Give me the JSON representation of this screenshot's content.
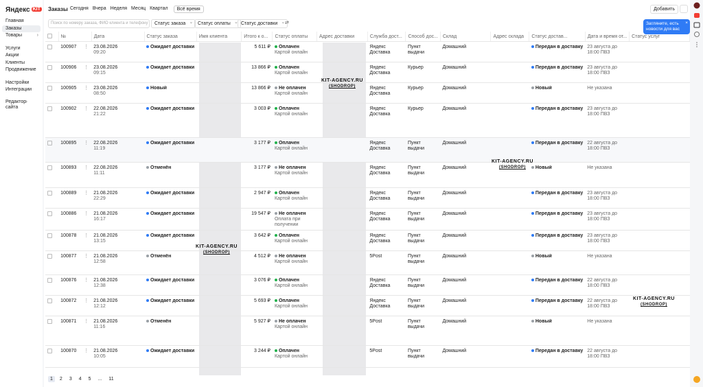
{
  "header": {
    "logo": "Яндекс",
    "badge": "KIT"
  },
  "sidebar": {
    "items": [
      "Главная",
      "Заказы",
      "Товары",
      "Услуги",
      "Акции",
      "Клиенты",
      "Продвижение",
      "Настройки",
      "Интеграции",
      "Редактор сайта"
    ]
  },
  "topbar": {
    "title": "Заказы",
    "periods": [
      "Сегодня",
      "Вчера",
      "Неделя",
      "Месяц",
      "Квартал",
      "Всё время"
    ],
    "add_button": "Добавить"
  },
  "filters": {
    "search_placeholder": "Поиск по номеру заказа, ФИО клиента и телефону",
    "selects": [
      "Статус заказа",
      "Статус оплаты",
      "Статус доставки"
    ]
  },
  "tooltip": "Загляните, есть новости для вас",
  "table": {
    "columns": [
      "№",
      "Дата",
      "Статус заказа",
      "Имя клиента",
      "Итого к о...",
      "Статус оплаты",
      "Адрес доставки",
      "Служба дост...",
      "Способ дос...",
      "Склад",
      "Адрес склада",
      "Статус достав...",
      "Дата и время от...",
      "Статус услуг"
    ],
    "rows": [
      {
        "id": "100907",
        "date": "23.08.2026",
        "time": "09:20",
        "order_status": {
          "text": "Ожидает доставки",
          "color": "#2f7bf5"
        },
        "total": "5 611 ₽",
        "payment_status": {
          "text": "Оплачен",
          "color": "#22b14c"
        },
        "payment_method": "Картой онлайн",
        "delivery_service": "Яндекс Доставка",
        "delivery_method": "Пункт выдачи",
        "warehouse": "Домашний",
        "delivery_status": {
          "text": "Передан в доставку",
          "color": "#2f7bf5"
        },
        "delivery_date": "23 августа до 18:00 ПВЗ"
      },
      {
        "id": "100906",
        "date": "23.08.2026",
        "time": "09:15",
        "order_status": {
          "text": "Ожидает доставки",
          "color": "#2f7bf5"
        },
        "total": "13 866 ₽",
        "payment_status": {
          "text": "Оплачен",
          "color": "#22b14c"
        },
        "payment_method": "Картой онлайн",
        "delivery_service": "Яндекс Доставка",
        "delivery_method": "Курьер",
        "warehouse": "Домашний",
        "delivery_status": {
          "text": "Передан в доставку",
          "color": "#2f7bf5"
        },
        "delivery_date": "23 августа до 18:00 ПВЗ"
      },
      {
        "id": "100905",
        "date": "23.08.2026",
        "time": "08:50",
        "order_status": {
          "text": "Новый",
          "color": "#2f7bf5"
        },
        "total": "13 866 ₽",
        "payment_status": {
          "text": "Не оплачен",
          "color": "#9aa0a6"
        },
        "payment_method": "Картой онлайн",
        "delivery_service": "Яндекс Доставка",
        "delivery_method": "Курьер",
        "warehouse": "Домашний",
        "delivery_status": {
          "text": "Новый",
          "color": "#9aa0a6"
        },
        "delivery_date": "Не указана"
      },
      {
        "id": "100902",
        "date": "22.08.2026",
        "time": "21:22",
        "order_status": {
          "text": "Ожидает доставки",
          "color": "#2f7bf5"
        },
        "total": "3 003 ₽",
        "payment_status": {
          "text": "Оплачен",
          "color": "#22b14c"
        },
        "payment_method": "Картой онлайн",
        "delivery_service": "Яндекс Доставка",
        "delivery_method": "Курьер",
        "warehouse": "Домашний",
        "delivery_status": {
          "text": "Передан в доставку",
          "color": "#2f7bf5"
        },
        "delivery_date": "23 августа до 18:00 ПВЗ"
      },
      {
        "id": "100895",
        "date": "22.08.2026",
        "time": "11:19",
        "order_status": {
          "text": "Ожидает доставки",
          "color": "#2f7bf5"
        },
        "total": "3 177 ₽",
        "payment_status": {
          "text": "Оплачен",
          "color": "#22b14c"
        },
        "payment_method": "Картой онлайн",
        "delivery_service": "Яндекс Доставка",
        "delivery_method": "Пункт выдачи",
        "warehouse": "Домашний",
        "delivery_status": {
          "text": "Передан в доставку",
          "color": "#2f7bf5"
        },
        "delivery_date": "22 августа до 18:00 ПВЗ"
      },
      {
        "id": "100893",
        "date": "22.08.2026",
        "time": "11:11",
        "order_status": {
          "text": "Отменён",
          "color": "#9aa0a6"
        },
        "total": "3 177 ₽",
        "payment_status": {
          "text": "Не оплачен",
          "color": "#9aa0a6"
        },
        "payment_method": "Картой онлайн",
        "delivery_service": "Яндекс Доставка",
        "delivery_method": "Пункт выдачи",
        "warehouse": "Домашний",
        "delivery_status": {
          "text": "Новый",
          "color": "#9aa0a6"
        },
        "delivery_date": "Не указана"
      },
      {
        "id": "100889",
        "date": "21.08.2026",
        "time": "22:29",
        "order_status": {
          "text": "Ожидает доставки",
          "color": "#2f7bf5"
        },
        "total": "2 947 ₽",
        "payment_status": {
          "text": "Оплачен",
          "color": "#22b14c"
        },
        "payment_method": "Картой онлайн",
        "delivery_service": "Яндекс Доставка",
        "delivery_method": "Пункт выдачи",
        "warehouse": "Домашний",
        "delivery_status": {
          "text": "Передан в доставку",
          "color": "#2f7bf5"
        },
        "delivery_date": "23 августа до 18:00 ПВЗ"
      },
      {
        "id": "100886",
        "date": "21.08.2026",
        "time": "16:17",
        "order_status": {
          "text": "Ожидает доставки",
          "color": "#2f7bf5"
        },
        "total": "19 547 ₽",
        "payment_status": {
          "text": "Не оплачен",
          "color": "#9aa0a6"
        },
        "payment_method": "Оплата при получении",
        "delivery_service": "Яндекс Доставка",
        "delivery_method": "Пункт выдачи",
        "warehouse": "Домашний",
        "delivery_status": {
          "text": "Передан в доставку",
          "color": "#2f7bf5"
        },
        "delivery_date": "23 августа до 18:00 ПВЗ"
      },
      {
        "id": "100878",
        "date": "21.08.2026",
        "time": "13:15",
        "order_status": {
          "text": "Ожидает доставки",
          "color": "#2f7bf5"
        },
        "total": "3 642 ₽",
        "payment_status": {
          "text": "Оплачен",
          "color": "#22b14c"
        },
        "payment_method": "Картой онлайн",
        "delivery_service": "Яндекс Доставка",
        "delivery_method": "Пункт выдачи",
        "warehouse": "Домашний",
        "delivery_status": {
          "text": "Передан в доставку",
          "color": "#2f7bf5"
        },
        "delivery_date": "23 августа до 18:00 ПВЗ"
      },
      {
        "id": "100877",
        "date": "21.08.2026",
        "time": "12:58",
        "order_status": {
          "text": "Отменён",
          "color": "#9aa0a6"
        },
        "total": "4 512 ₽",
        "payment_status": {
          "text": "Не оплачен",
          "color": "#9aa0a6"
        },
        "payment_method": "Картой онлайн",
        "delivery_service": "5Post",
        "delivery_method": "Пункт выдачи",
        "warehouse": "Домашний",
        "delivery_status": {
          "text": "Новый",
          "color": "#9aa0a6"
        },
        "delivery_date": "Не указана"
      },
      {
        "id": "100876",
        "date": "21.08.2026",
        "time": "12:38",
        "order_status": {
          "text": "Ожидает доставки",
          "color": "#2f7bf5"
        },
        "total": "3 076 ₽",
        "payment_status": {
          "text": "Оплачен",
          "color": "#22b14c"
        },
        "payment_method": "Картой онлайн",
        "delivery_service": "Яндекс Доставка",
        "delivery_method": "Пункт выдачи",
        "warehouse": "Домашний",
        "delivery_status": {
          "text": "Передан в доставку",
          "color": "#2f7bf5"
        },
        "delivery_date": "22 августа до 18:00 ПВЗ"
      },
      {
        "id": "100872",
        "date": "21.08.2026",
        "time": "12:12",
        "order_status": {
          "text": "Ожидает доставки",
          "color": "#2f7bf5"
        },
        "total": "5 693 ₽",
        "payment_status": {
          "text": "Оплачен",
          "color": "#22b14c"
        },
        "payment_method": "Картой онлайн",
        "delivery_service": "Яндекс Доставка",
        "delivery_method": "Пункт выдачи",
        "warehouse": "Домашний",
        "delivery_status": {
          "text": "Передан в доставку",
          "color": "#2f7bf5"
        },
        "delivery_date": "22 августа до 18:00 ПВЗ"
      },
      {
        "id": "100871",
        "date": "21.08.2026",
        "time": "11:16",
        "order_status": {
          "text": "Отменён",
          "color": "#9aa0a6"
        },
        "total": "5 927 ₽",
        "payment_status": {
          "text": "Не оплачен",
          "color": "#9aa0a6"
        },
        "payment_method": "Картой онлайн",
        "delivery_service": "5Post",
        "delivery_method": "Пункт выдачи",
        "warehouse": "Домашний",
        "delivery_status": {
          "text": "Новый",
          "color": "#9aa0a6"
        },
        "delivery_date": "Не указана"
      },
      {
        "id": "100870",
        "date": "21.08.2026",
        "time": "10:05",
        "order_status": {
          "text": "Ожидает доставки",
          "color": "#2f7bf5"
        },
        "total": "3 244 ₽",
        "payment_status": {
          "text": "Оплачен",
          "color": "#22b14c"
        },
        "payment_method": "Картой онлайн",
        "delivery_service": "5Post",
        "delivery_method": "Пункт выдачи",
        "warehouse": "Домашний",
        "delivery_status": {
          "text": "Передан в доставку",
          "color": "#2f7bf5"
        },
        "delivery_date": "22 августа до 18:00 ПВЗ"
      }
    ]
  },
  "watermarks": [
    {
      "line1": "KIT-AGENCY.RU",
      "line2": "(SHODROP)"
    },
    {
      "line1": "KIT-AGENCY.RU",
      "line2": "(SHODROP)"
    },
    {
      "line1": "KIT-AGENCY.RU",
      "line2": "(SHODROP)"
    },
    {
      "line1": "KIT-AGENCY.RU",
      "line2": "(SHODROP)"
    }
  ],
  "pagination": [
    "1",
    "2",
    "3",
    "4",
    "5",
    "...",
    "11"
  ]
}
